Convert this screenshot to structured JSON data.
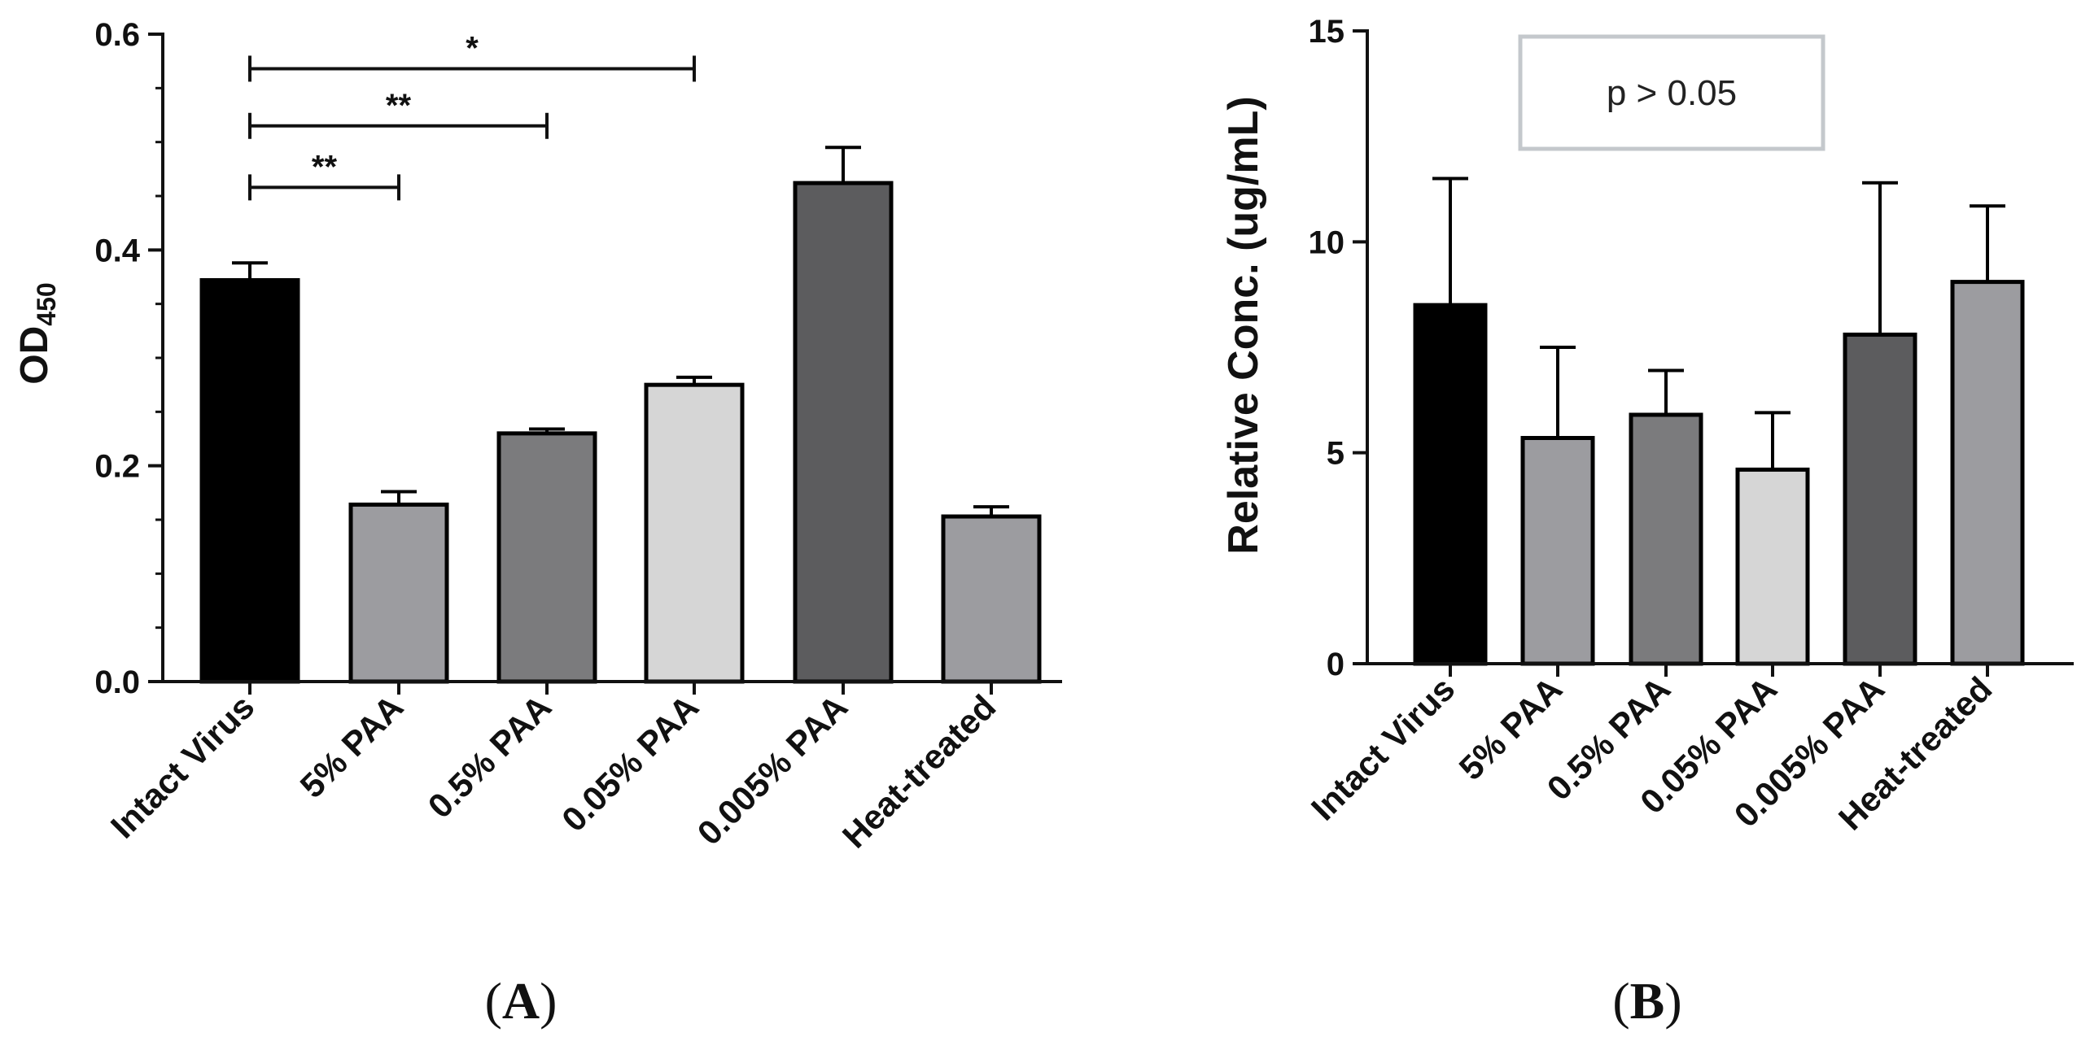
{
  "chart_data": [
    {
      "type": "bar",
      "panel": "A",
      "caption_bold": "A",
      "caption_paren_open": "(",
      "caption_paren_close": ")",
      "ylabel_main": "OD",
      "ylabel_sub": "450",
      "ylim": [
        0,
        0.6
      ],
      "yticks": [
        "0.0",
        "0.2",
        "0.4",
        "0.6"
      ],
      "yticks_values": [
        0,
        0.2,
        0.4,
        0.6
      ],
      "categories": [
        "Intact Virus",
        "5% PAA",
        "0.5% PAA",
        "0.05% PAA",
        "0.005% PAA",
        "Heat-treated"
      ],
      "values": [
        0.372,
        0.164,
        0.23,
        0.275,
        0.462,
        0.153
      ],
      "errors": [
        0.016,
        0.012,
        0.004,
        0.007,
        0.033,
        0.009
      ],
      "colors": [
        "#000000",
        "#9c9ca0",
        "#7b7b7d",
        "#d6d6d6",
        "#5c5c5e",
        "#9c9ca0"
      ],
      "significance": [
        {
          "from": 0,
          "to": 3,
          "label": "*",
          "y": 0.568
        },
        {
          "from": 0,
          "to": 2,
          "label": "**",
          "y": 0.515
        },
        {
          "from": 0,
          "to": 1,
          "label": "**",
          "y": 0.458
        }
      ]
    },
    {
      "type": "bar",
      "panel": "B",
      "caption_bold": "B",
      "caption_paren_open": "(",
      "caption_paren_close": ")",
      "ylabel": "Relative Conc. (ug/mL)",
      "ylim": [
        0,
        15
      ],
      "yticks": [
        "0",
        "5",
        "10",
        "15"
      ],
      "yticks_values": [
        0,
        5,
        10,
        15
      ],
      "categories": [
        "Intact Virus",
        "5% PAA",
        "0.5% PAA",
        "0.05% PAA",
        "0.005% PAA",
        "Heat-treated"
      ],
      "values": [
        8.5,
        5.35,
        5.9,
        4.6,
        7.8,
        9.05
      ],
      "errors": [
        3.0,
        2.15,
        1.05,
        1.35,
        3.6,
        1.8
      ],
      "colors": [
        "#000000",
        "#9c9ca0",
        "#7b7b7d",
        "#d6d6d6",
        "#5c5c5e",
        "#9c9ca0"
      ],
      "annotation": "p > 0.05"
    }
  ]
}
